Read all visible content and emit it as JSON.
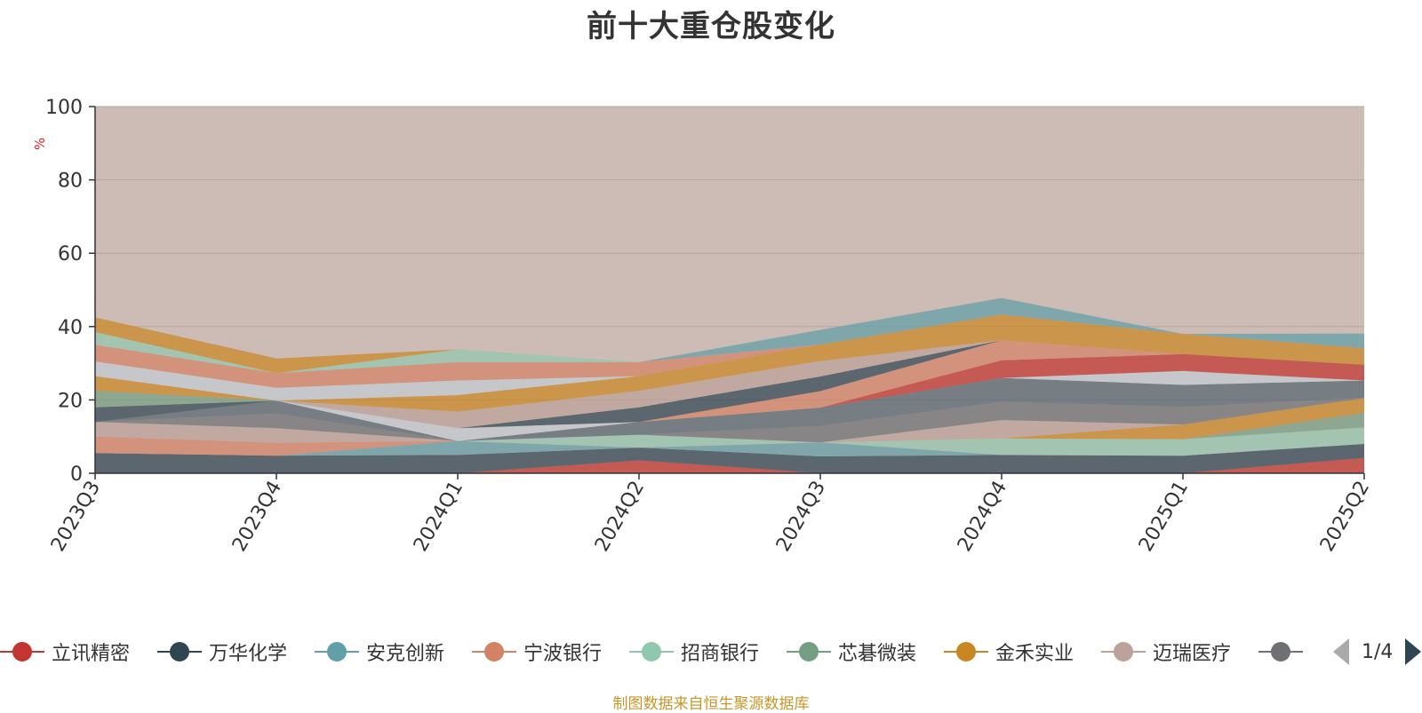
{
  "title": "前十大重仓股变化",
  "source_note": "制图数据来自恒生聚源数据库",
  "legend_pager": "1/4",
  "colors": {
    "residual_fill": "#cdbbb5",
    "axis": "#333333",
    "ylabel": "#dd2222",
    "grid": "#b5a5a0",
    "source": "#c8962a"
  },
  "chart_data": {
    "type": "area",
    "stacked": true,
    "title": "前十大重仓股变化",
    "ylabel": "%",
    "xlabel": "",
    "ylim": [
      0,
      100
    ],
    "yticks": [
      0,
      20,
      40,
      60,
      80,
      100
    ],
    "categories": [
      "2023Q3",
      "2023Q4",
      "2024Q1",
      "2024Q2",
      "2024Q3",
      "2024Q4",
      "2025Q1",
      "2025Q2"
    ],
    "grid": true,
    "legend_position": "bottom",
    "series": [
      {
        "name": "立讯精密",
        "color": "#c23531",
        "values": [
          0,
          0,
          0,
          3.5,
          0,
          0,
          0,
          4.2
        ]
      },
      {
        "name": "万华化学",
        "color": "#2f4554",
        "values": [
          5.5,
          4.8,
          5.0,
          3.5,
          4.6,
          5.0,
          4.8,
          3.8
        ]
      },
      {
        "name": "安克创新",
        "color": "#61a0a8",
        "values": [
          0,
          0,
          3.8,
          0,
          3.8,
          0,
          0,
          0
        ]
      },
      {
        "name": "宁波银行",
        "color": "#d48265",
        "values": [
          4.5,
          3.5,
          0,
          0,
          0,
          0,
          0,
          0
        ]
      },
      {
        "name": "招商银行",
        "color": "#91c7ae",
        "values": [
          0,
          0,
          0,
          3.5,
          0,
          4.5,
          4.5,
          4.5
        ]
      },
      {
        "name": "芯碁微装",
        "color": "#749f83",
        "values": [
          0,
          0,
          0,
          0,
          0,
          0,
          0,
          4.0
        ]
      },
      {
        "name": "金禾实业",
        "color": "#ca8622",
        "values": [
          0,
          0,
          0,
          0,
          0,
          0,
          4.0,
          4.0
        ]
      },
      {
        "name": "迈瑞医疗",
        "color": "#bda29a",
        "values": [
          4.0,
          4.0,
          0,
          0,
          0,
          5.0,
          0,
          0
        ]
      },
      {
        "name": "",
        "color": "#6e7074",
        "values": [
          0,
          4.0,
          0,
          0,
          4.5,
          5.0,
          4.8,
          0
        ]
      },
      {
        "name": "",
        "color": "#546570",
        "values": [
          0,
          3.5,
          0,
          3.5,
          5.0,
          6.5,
          6.0,
          4.8
        ]
      },
      {
        "name": "",
        "color": "#c4ccd3",
        "values": [
          0,
          0,
          3.5,
          0,
          0,
          0,
          3.8,
          0
        ]
      },
      {
        "name": "",
        "color": "#c23531",
        "values": [
          0,
          0,
          0,
          0,
          0,
          4.8,
          4.6,
          4.3
        ]
      },
      {
        "name": "",
        "color": "#d48265",
        "values": [
          0,
          0,
          0,
          0,
          4.5,
          5.5,
          0,
          0
        ]
      },
      {
        "name": "",
        "color": "#2f4554",
        "values": [
          4.0,
          0,
          0,
          4.0,
          4.0,
          0,
          0,
          0
        ]
      },
      {
        "name": "",
        "color": "#749f83",
        "values": [
          4.5,
          0,
          0,
          0,
          0,
          0,
          0,
          0
        ]
      },
      {
        "name": "",
        "color": "#bda29a",
        "values": [
          0,
          0,
          4.5,
          4.5,
          4.2,
          0,
          0,
          0
        ]
      },
      {
        "name": "",
        "color": "#ca8622",
        "values": [
          4.0,
          0,
          4.5,
          4.0,
          4.5,
          7.0,
          5.5,
          4.5
        ]
      },
      {
        "name": "",
        "color": "#c4ccd3",
        "values": [
          4.0,
          3.5,
          4.0,
          0,
          0,
          0,
          0,
          0
        ]
      },
      {
        "name": "",
        "color": "#d48265",
        "values": [
          4.5,
          4.0,
          5.0,
          3.8,
          0,
          0,
          0,
          0
        ]
      },
      {
        "name": "",
        "color": "#91c7ae",
        "values": [
          3.5,
          0,
          3.5,
          0,
          0,
          0,
          0,
          0
        ]
      },
      {
        "name": "",
        "color": "#ca8622",
        "values": [
          4.0,
          4.0,
          0,
          0,
          0,
          0,
          0,
          0
        ]
      },
      {
        "name": "",
        "color": "#61a0a8",
        "values": [
          0,
          0,
          0,
          0,
          4.0,
          4.5,
          0,
          4.0
        ]
      }
    ]
  },
  "legend_items": [
    {
      "name": "立讯精密",
      "color": "#c23531"
    },
    {
      "name": "万华化学",
      "color": "#2f4554"
    },
    {
      "name": "安克创新",
      "color": "#61a0a8"
    },
    {
      "name": "宁波银行",
      "color": "#d48265"
    },
    {
      "name": "招商银行",
      "color": "#91c7ae"
    },
    {
      "name": "芯碁微装",
      "color": "#749f83"
    },
    {
      "name": "金禾实业",
      "color": "#ca8622"
    },
    {
      "name": "迈瑞医疗",
      "color": "#bda29a"
    },
    {
      "name": "",
      "color": "#6e7074"
    }
  ]
}
